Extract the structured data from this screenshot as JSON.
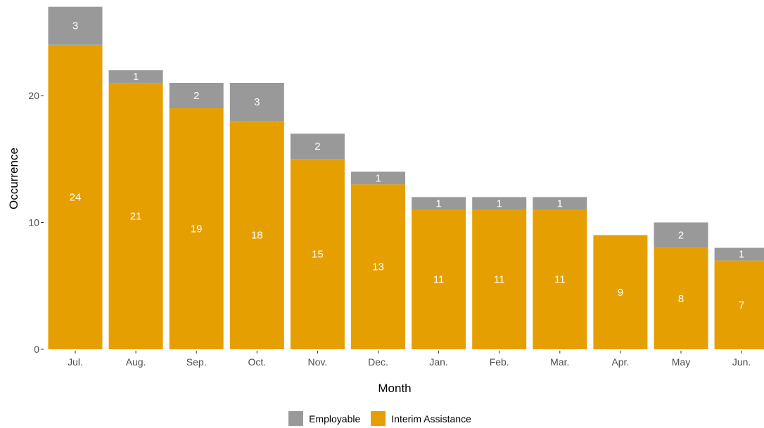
{
  "chart_data": {
    "type": "bar",
    "stacked": true,
    "categories": [
      "Jul.",
      "Aug.",
      "Sep.",
      "Oct.",
      "Nov.",
      "Dec.",
      "Jan.",
      "Feb.",
      "Mar.",
      "Apr.",
      "May",
      "Jun."
    ],
    "series": [
      {
        "name": "Interim Assistance",
        "color": "#E69F00",
        "values": [
          24,
          21,
          19,
          18,
          15,
          13,
          11,
          11,
          11,
          9,
          8,
          7
        ]
      },
      {
        "name": "Employable",
        "color": "#999999",
        "values": [
          3,
          1,
          2,
          3,
          2,
          1,
          1,
          1,
          1,
          0,
          2,
          1
        ]
      }
    ],
    "xlabel": "Month",
    "ylabel": "Occurrence",
    "yticks": [
      0,
      10,
      20
    ],
    "ylim": [
      0,
      27
    ],
    "grid": false,
    "legend_position": "bottom"
  }
}
